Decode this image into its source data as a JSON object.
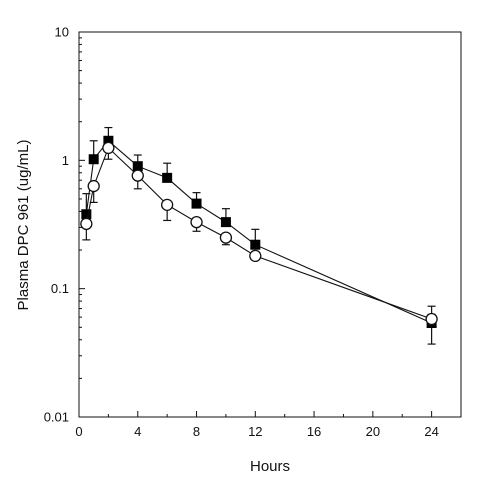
{
  "chart_data": {
    "type": "line",
    "title": "",
    "xlabel": "Hours",
    "ylabel": "Plasma DPC 961 (ug/mL)",
    "xlim": [
      0,
      26
    ],
    "ylim": [
      0.01,
      10
    ],
    "yscale": "log",
    "grid": false,
    "legend": "none",
    "x_ticks": [
      0,
      4,
      8,
      12,
      16,
      20,
      24
    ],
    "y_ticks": [
      0.01,
      0.1,
      1,
      10
    ],
    "x_tick_labels": [
      "0",
      "4",
      "8",
      "12",
      "16",
      "20",
      "24"
    ],
    "y_tick_labels": [
      "0.01",
      "0.1",
      "1",
      "10"
    ],
    "series": [
      {
        "marker": "filled-square",
        "color": "#000000",
        "points": [
          {
            "x": 0.5,
            "y": 0.38,
            "err_hi": 0.55,
            "err_lo": 0.38
          },
          {
            "x": 1,
            "y": 1.02,
            "err_hi": 1.42,
            "err_lo": 1.02
          },
          {
            "x": 2,
            "y": 1.42,
            "err_hi": 1.8,
            "err_lo": 1.42
          },
          {
            "x": 4,
            "y": 0.9,
            "err_hi": 1.1,
            "err_lo": 0.9
          },
          {
            "x": 6,
            "y": 0.73,
            "err_hi": 0.95,
            "err_lo": 0.73
          },
          {
            "x": 8,
            "y": 0.46,
            "err_hi": 0.56,
            "err_lo": 0.46
          },
          {
            "x": 10,
            "y": 0.33,
            "err_hi": 0.42,
            "err_lo": 0.33
          },
          {
            "x": 12,
            "y": 0.22,
            "err_hi": 0.29,
            "err_lo": 0.22
          },
          {
            "x": 24,
            "y": 0.054,
            "err_hi": 0.063,
            "err_lo": 0.037
          }
        ]
      },
      {
        "marker": "open-circle",
        "color": "#000000",
        "points": [
          {
            "x": 0.5,
            "y": 0.32,
            "err_hi": 0.32,
            "err_lo": 0.24
          },
          {
            "x": 1,
            "y": 0.63,
            "err_hi": 0.63,
            "err_lo": 0.47
          },
          {
            "x": 2,
            "y": 1.25,
            "err_hi": 1.25,
            "err_lo": 1.02
          },
          {
            "x": 4,
            "y": 0.76,
            "err_hi": 0.76,
            "err_lo": 0.6
          },
          {
            "x": 6,
            "y": 0.45,
            "err_hi": 0.45,
            "err_lo": 0.34
          },
          {
            "x": 8,
            "y": 0.33,
            "err_hi": 0.33,
            "err_lo": 0.28
          },
          {
            "x": 10,
            "y": 0.25,
            "err_hi": 0.25,
            "err_lo": 0.22
          },
          {
            "x": 12,
            "y": 0.18,
            "err_hi": 0.18,
            "err_lo": 0.17
          },
          {
            "x": 24,
            "y": 0.058,
            "err_hi": 0.073,
            "err_lo": 0.058
          }
        ]
      }
    ]
  }
}
